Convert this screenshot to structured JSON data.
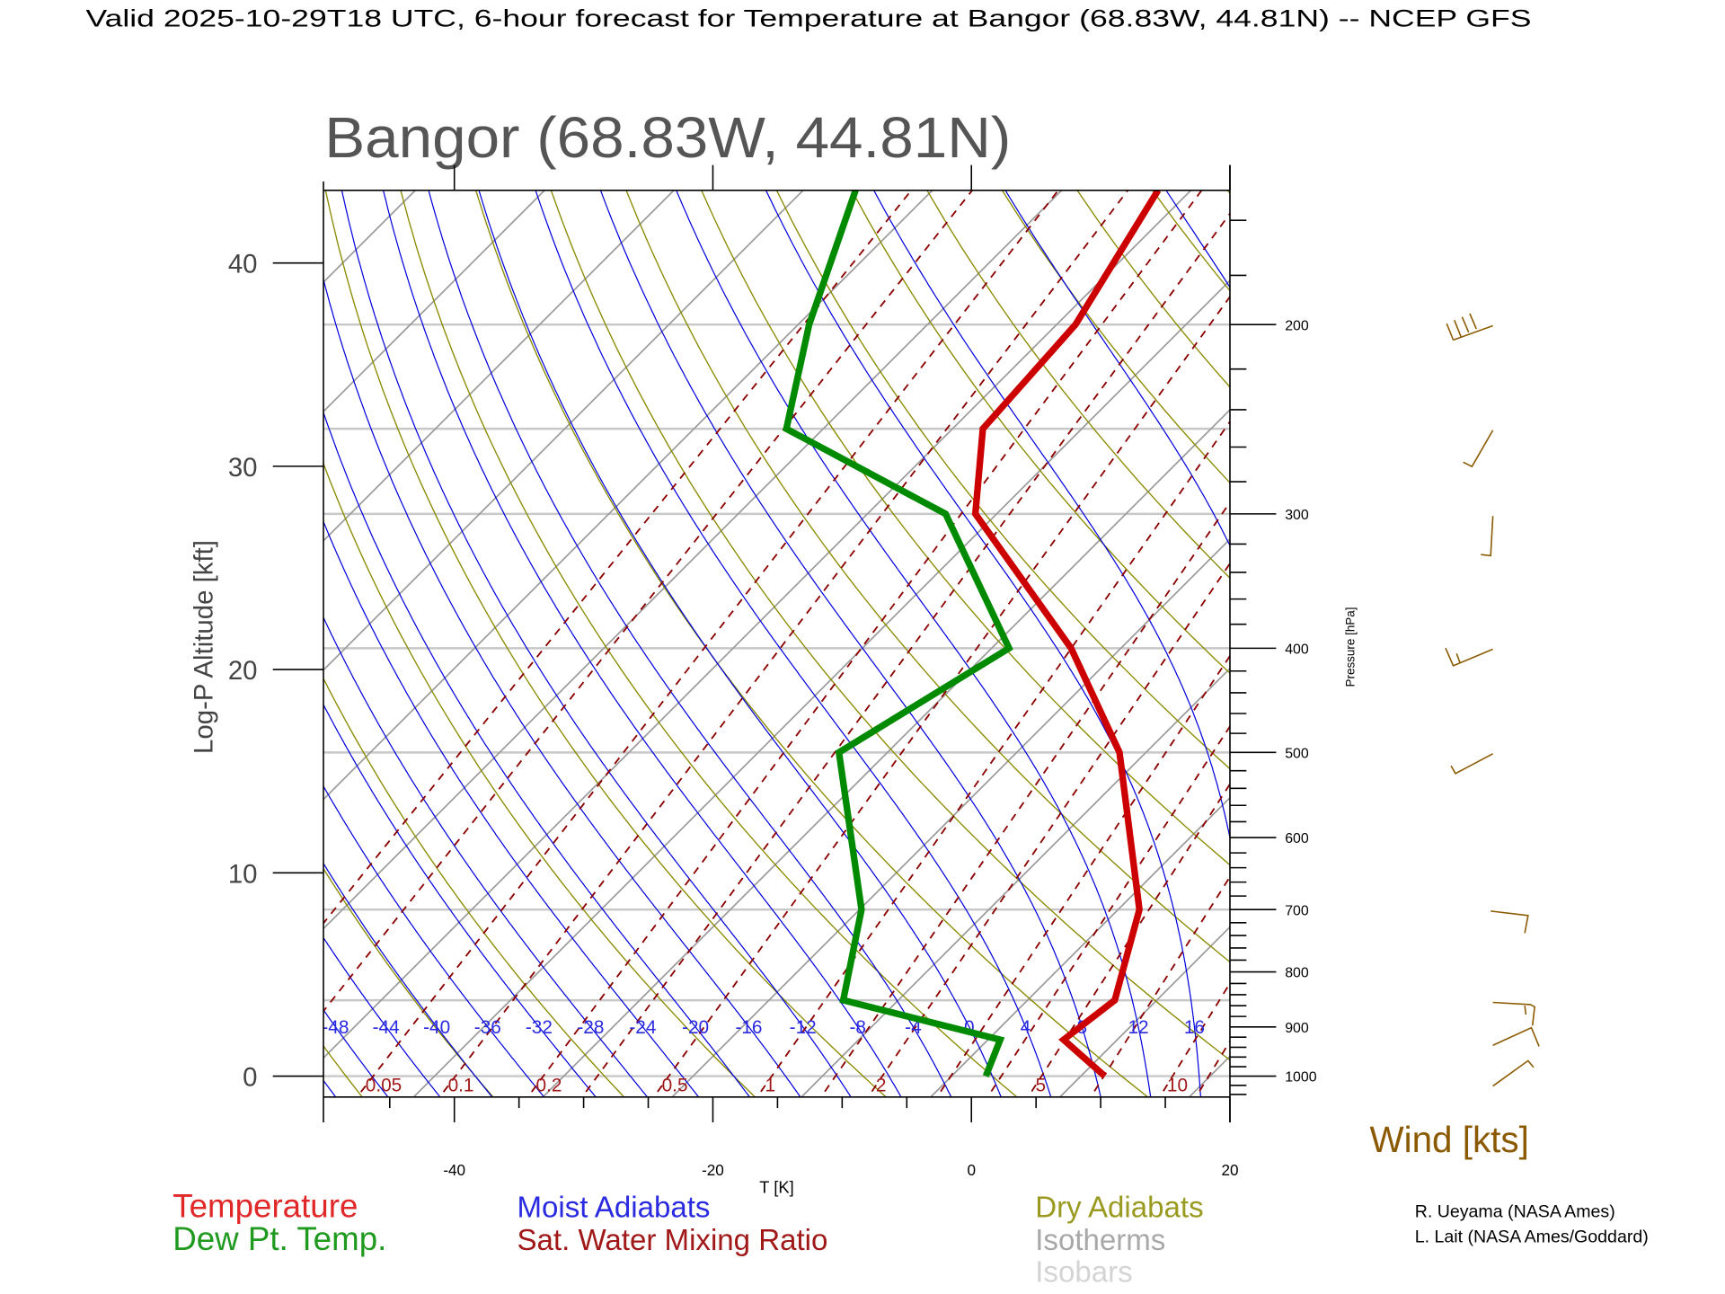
{
  "header": {
    "title": "Valid 2025-10-29T18 UTC, 6-hour forecast for Temperature at Bangor (68.83W, 44.81N) -- NCEP GFS"
  },
  "chart_data": {
    "type": "line",
    "subtype": "skew-T log-P diagram",
    "title": "Bangor (68.83W, 44.81N)",
    "xlabel": "T [K]",
    "ylabel": "Log-P Altitude [kft]",
    "y2label": "Pressure [hPa]",
    "xlim": [
      -50,
      20
    ],
    "x_ticks": [
      -40,
      -20,
      0,
      20
    ],
    "altitude_ticks": [
      0,
      10,
      20,
      30,
      40
    ],
    "pressure_range": [
      1046,
      150
    ],
    "pressure_ticks": [
      1000,
      900,
      800,
      700,
      600,
      500,
      400,
      300,
      200
    ],
    "series": [
      {
        "name": "Temperature",
        "color": "#cc0000",
        "pressure": [
          1000,
          925,
          850,
          700,
          500,
          400,
          300,
          250,
          200,
          150
        ],
        "values": [
          8.7,
          2.7,
          3.6,
          -1.5,
          -15.2,
          -27.0,
          -44.8,
          -50.8,
          -51.7,
          -55.7
        ]
      },
      {
        "name": "Dew Pt. Temp.",
        "color": "#008a00",
        "pressure": [
          1000,
          925,
          850,
          700,
          500,
          400,
          300,
          250,
          200,
          150
        ],
        "values": [
          -0.5,
          -2.2,
          -17.4,
          -23.0,
          -36.9,
          -31.8,
          -47.1,
          -66.0,
          -72.3,
          -79.1
        ]
      }
    ],
    "background": {
      "isobars_hPa": [
        1000,
        850,
        700,
        500,
        400,
        300,
        250,
        200
      ],
      "isotherms_K": [
        160,
        170,
        180,
        190,
        200,
        210,
        220,
        230,
        240,
        250,
        260,
        270,
        280,
        290,
        300,
        310,
        320,
        330
      ],
      "dry_adiabats_C": [
        -60,
        -50,
        -40,
        -30,
        -20,
        -10,
        0,
        10,
        20,
        30,
        40,
        50,
        60,
        70,
        80,
        90,
        100,
        110,
        120
      ],
      "moist_adiabat_labels": [
        "-48",
        "-44",
        "-40",
        "-36",
        "-32",
        "-28",
        "-24",
        "-20",
        "-16",
        "-12",
        "-8",
        "-4",
        "0",
        "4",
        "8",
        "12",
        "16"
      ],
      "mixing_ratio_lines_gkg": [
        0.01,
        0.02,
        0.05,
        0.1,
        0.2,
        0.3,
        0.5,
        1,
        1.5,
        2,
        3,
        4,
        5,
        7,
        10,
        12,
        15,
        20
      ],
      "mixing_ratio_labels": [
        "0.05",
        "0.1",
        "0.2",
        "0.5",
        "1",
        "2",
        "5",
        "10"
      ]
    },
    "wind_label": "Wind [kts]",
    "legend": [
      {
        "label": "Temperature",
        "color": "#e02828"
      },
      {
        "label": "Dew Pt. Temp.",
        "color": "#1f9a1f"
      },
      {
        "label": "Moist Adiabats",
        "color": "#2a2ae0"
      },
      {
        "label": "Sat. Water Mixing Ratio",
        "color": "#a01818"
      },
      {
        "label": "Dry Adiabats",
        "color": "#9a9a20"
      },
      {
        "label": "Isotherms",
        "color": "#a8a8a8"
      },
      {
        "label": "Isobars",
        "color": "#d4d4d4"
      }
    ]
  },
  "credits": [
    "R. Ueyama (NASA Ames)",
    "L. Lait (NASA Ames/Goddard)"
  ]
}
